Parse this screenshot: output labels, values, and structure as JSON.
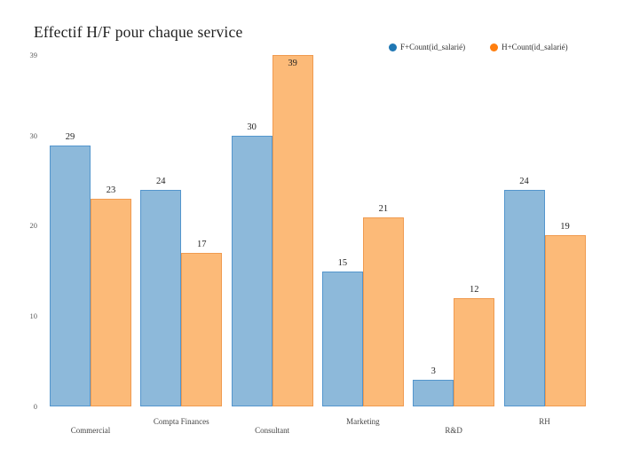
{
  "title": "Effectif H/F pour chaque service",
  "legend": {
    "items": [
      {
        "label": "F+Count(id_salarié)",
        "color": "#1f77b4"
      },
      {
        "label": "H+Count(id_salarié)",
        "color": "#ff7e0e"
      }
    ]
  },
  "colors": {
    "f_fill": "#8db9da",
    "f_border": "#5496cd",
    "h_fill": "#fcba78",
    "h_border": "#f09b50",
    "title_text": "#1f1f1f",
    "tick_text": "#5a5a5a",
    "axis_label_text": "#454545",
    "value_label_text": "#1f1f1f",
    "background": "#ffffff"
  },
  "chart_data": {
    "type": "bar",
    "title": "Effectif H/F pour chaque service",
    "categories": [
      "Commercial",
      "Compta Finances",
      "Consultant",
      "Marketing",
      "R&D",
      "RH"
    ],
    "series": [
      {
        "name": "F+Count(id_salarié)",
        "color": "#1f77b4",
        "fill": "#8db9da",
        "border": "#5496cd",
        "values": [
          29,
          24,
          30,
          15,
          3,
          24
        ]
      },
      {
        "name": "H+Count(id_salarié)",
        "color": "#ff7e0e",
        "fill": "#fcba78",
        "border": "#f09b50",
        "values": [
          23,
          17,
          39,
          21,
          12,
          19
        ]
      }
    ],
    "xlabel": "",
    "ylabel": "",
    "yticks": [
      0,
      10,
      20,
      30,
      39
    ],
    "ylim": [
      0,
      39
    ],
    "grid": false,
    "legend_position": "top-right",
    "value_labels": true,
    "x_labels_staggered": true
  }
}
